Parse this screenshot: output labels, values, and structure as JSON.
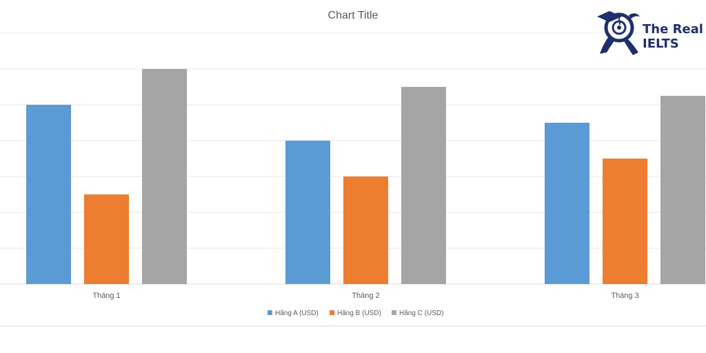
{
  "brand": {
    "line1": "The Real",
    "line2": "IELTS",
    "logo_icon": "owl-graduate-icon",
    "color": "#1f2f6b"
  },
  "chart_data": {
    "type": "bar",
    "title": "Chart Title",
    "xlabel": "",
    "ylabel": "",
    "categories": [
      "Tháng 1",
      "Tháng 2",
      "Tháng 3"
    ],
    "series": [
      {
        "name": "Hãng A (USD)",
        "color": "#5b9bd5",
        "values": [
          5,
          4,
          4.5
        ]
      },
      {
        "name": "Hãng B (USD)",
        "color": "#ed7d31",
        "values": [
          2.5,
          3,
          3.5
        ]
      },
      {
        "name": "Hãng C (USD)",
        "color": "#a5a5a5",
        "values": [
          6,
          5.5,
          5.25
        ]
      }
    ],
    "ylim": [
      0,
      7
    ],
    "grid": true,
    "legend": "bottom"
  }
}
